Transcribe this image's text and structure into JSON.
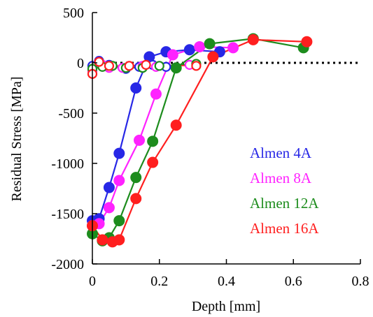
{
  "chart_data": {
    "type": "line",
    "title": "",
    "xlabel": "Depth [mm]",
    "ylabel": "Residual Stress [MPa]",
    "xlim": [
      0,
      0.8
    ],
    "ylim": [
      -2000,
      500
    ],
    "x_ticks": [
      0,
      0.2,
      0.4,
      0.6,
      0.8
    ],
    "x_tick_labels": [
      "0",
      "0.2",
      "0.4",
      "0.6",
      "0.8"
    ],
    "y_ticks": [
      -2000,
      -1500,
      -1000,
      -500,
      0,
      500
    ],
    "y_tick_labels": [
      "-2000",
      "-1500",
      "-1000",
      "-500",
      "0",
      "500"
    ],
    "grid": false,
    "zero_reference_line": {
      "y": 0,
      "style": "dotted",
      "color": "#000000"
    },
    "legend_position": "center-right",
    "series": [
      {
        "name": "Almen 4A",
        "color": "#2727e6",
        "marker": "filled-circle",
        "x": [
          0,
          0.02,
          0.05,
          0.08,
          0.13,
          0.17,
          0.22,
          0.29,
          0.38
        ],
        "y": [
          -1570,
          -1550,
          -1240,
          -900,
          -250,
          60,
          110,
          130,
          110
        ]
      },
      {
        "name": "Almen 8A",
        "color": "#ff22ff",
        "marker": "filled-circle",
        "x": [
          0,
          0.02,
          0.05,
          0.08,
          0.14,
          0.19,
          0.24,
          0.32,
          0.42
        ],
        "y": [
          -1620,
          -1600,
          -1440,
          -1170,
          -770,
          -310,
          80,
          160,
          150
        ]
      },
      {
        "name": "Almen 12A",
        "color": "#1d8c1d",
        "marker": "filled-circle",
        "x": [
          0,
          0.03,
          0.05,
          0.08,
          0.13,
          0.18,
          0.25,
          0.35,
          0.48,
          0.63
        ],
        "y": [
          -1700,
          -1770,
          -1740,
          -1570,
          -1140,
          -780,
          -50,
          190,
          240,
          150
        ]
      },
      {
        "name": "Almen 16A",
        "color": "#ff1f1f",
        "marker": "filled-circle",
        "x": [
          0,
          0.03,
          0.06,
          0.08,
          0.13,
          0.18,
          0.25,
          0.36,
          0.48,
          0.64
        ],
        "y": [
          -1620,
          -1760,
          -1780,
          -1760,
          -1350,
          -990,
          -620,
          60,
          230,
          210
        ]
      },
      {
        "name": "Almen 4A",
        "color": "#2727e6",
        "marker": "open-circle",
        "x": [
          0,
          0.02,
          0.05,
          0.1,
          0.14,
          0.18,
          0.22
        ],
        "y": [
          -30,
          20,
          -20,
          -60,
          -40,
          -20,
          -40
        ]
      },
      {
        "name": "Almen 8A",
        "color": "#ff22ff",
        "marker": "open-circle",
        "x": [
          0,
          0.03,
          0.05,
          0.09,
          0.15,
          0.19,
          0.29
        ],
        "y": [
          -80,
          -20,
          -50,
          -50,
          -30,
          -40,
          -20
        ]
      },
      {
        "name": "Almen 12A",
        "color": "#1d8c1d",
        "marker": "open-circle",
        "x": [
          0,
          0.03,
          0.06,
          0.1,
          0.15,
          0.2,
          0.31
        ],
        "y": [
          -60,
          -40,
          -30,
          -50,
          -50,
          -30,
          -10
        ]
      },
      {
        "name": "Almen 16A",
        "color": "#ff1f1f",
        "marker": "open-circle",
        "x": [
          0,
          0.02,
          0.05,
          0.11,
          0.16,
          0.31
        ],
        "y": [
          -110,
          10,
          -30,
          -30,
          -20,
          -30
        ]
      }
    ],
    "legend": [
      {
        "label": "Almen 4A",
        "color": "#2727e6"
      },
      {
        "label": "Almen 8A",
        "color": "#ff22ff"
      },
      {
        "label": "Almen 12A",
        "color": "#1d8c1d"
      },
      {
        "label": "Almen 16A",
        "color": "#ff1f1f"
      }
    ]
  }
}
